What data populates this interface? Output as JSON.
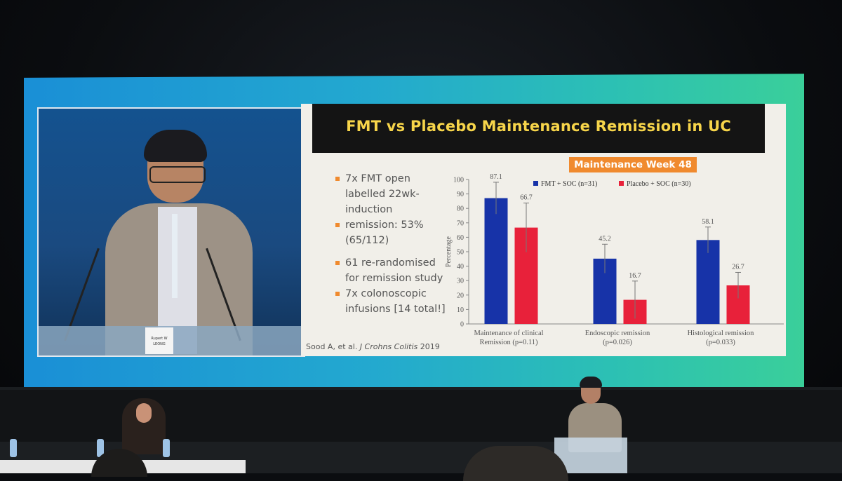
{
  "slide": {
    "title": "FMT vs Placebo Maintenance Remission in UC",
    "badge": "Maintenance Week 48",
    "bullets": [
      [
        "7x FMT open",
        "labelled 22wk-",
        "induction"
      ],
      [
        "remission: 53%",
        "(65/112)"
      ],
      [
        "61 re-randomised",
        "for remission study"
      ],
      [
        "7x colonoscopic",
        "infusions [14 total!]"
      ]
    ],
    "citation_prefix": "Sood A, et al. ",
    "citation_journal": "J Crohns Colitis",
    "citation_year": " 2019"
  },
  "nameplate": {
    "line1": "Rupert W",
    "line2": "LEONG"
  },
  "colors": {
    "fmt": "#1733a8",
    "placebo": "#e8213a",
    "badge": "#f08a2e",
    "title": "#f7d54a"
  },
  "chart_data": {
    "type": "bar",
    "ylabel": "Percentage",
    "ylim": [
      0,
      100
    ],
    "yticks": [
      0,
      10,
      20,
      30,
      40,
      50,
      60,
      70,
      80,
      90,
      100
    ],
    "categories": [
      [
        "Maintenance of clinical",
        "Remission  (p=0.11)"
      ],
      [
        "Endoscopic remission",
        "(p=0.026)"
      ],
      [
        "Histological remission",
        "(p=0.033)"
      ]
    ],
    "series": [
      {
        "name": "FMT + SOC (n=31)",
        "values": [
          87.1,
          45.2,
          58.1
        ],
        "color": "#1733a8"
      },
      {
        "name": "Placebo + SOC (n=30)",
        "values": [
          66.7,
          16.7,
          26.7
        ],
        "color": "#e8213a"
      }
    ],
    "legend": "top",
    "grid": false
  }
}
